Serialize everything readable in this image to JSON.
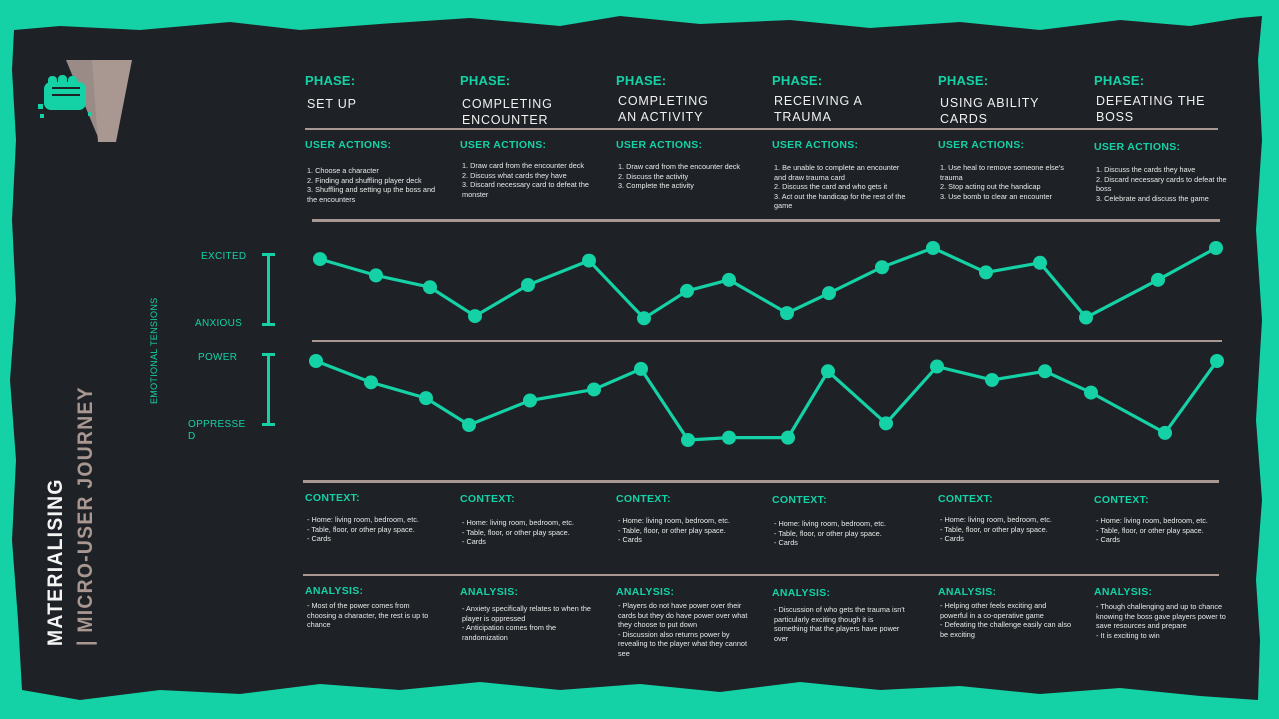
{
  "title": {
    "line1": "MATERIALISING",
    "line2": "| MICRO-USER JOURNEY"
  },
  "y_axis_title": "EMOTIONAL TENSIONS",
  "scales": [
    {
      "top": "EXCITED",
      "bottom": "ANXIOUS"
    },
    {
      "top": "POWER",
      "bottom": "OPPRESSED"
    }
  ],
  "section_labels": {
    "phase": "PHASE:",
    "actions": "USER ACTIONS:",
    "context": "CONTEXT:",
    "analysis": "ANALYSIS:"
  },
  "phases": [
    {
      "name": "SET UP",
      "actions": [
        "1. Choose a character",
        "2. Finding and shuffling player deck",
        "3. Shuffling and setting up the boss and the encounters"
      ],
      "context": [
        "- Home: living room, bedroom, etc.",
        "- Table, floor, or other play space.",
        "- Cards"
      ],
      "analysis": [
        "- Most of the power comes from choosing a character, the rest is up to chance"
      ]
    },
    {
      "name": "COMPLETING ENCOUNTER",
      "actions": [
        "1. Draw card from the encounter deck",
        "2. Discuss what cards they have",
        "3. Discard necessary card to defeat the monster"
      ],
      "context": [
        "- Home: living room, bedroom, etc.",
        "- Table, floor, or other play space.",
        "- Cards"
      ],
      "analysis": [
        "- Anxiety specifically relates to when the player is oppressed",
        "- Anticipation comes from the randomization"
      ]
    },
    {
      "name": "COMPLETING AN ACTIVITY",
      "actions": [
        "1. Draw card from the encounter deck",
        "2. Discuss the activity",
        "3. Complete the activity"
      ],
      "context": [
        "- Home: living room, bedroom, etc.",
        "- Table, floor, or other play space.",
        "- Cards"
      ],
      "analysis": [
        "- Players do not have power over their cards but they do have power over what they choose to put down",
        "- Discussion also returns power by revealing to the player what they cannot see"
      ]
    },
    {
      "name": "RECEIVING A TRAUMA",
      "actions": [
        "1. Be unable to complete an encounter and draw trauma card",
        "2. Discuss the card and who gets it",
        "3. Act out the handicap for the rest of the game"
      ],
      "context": [
        "- Home: living room, bedroom, etc.",
        "- Table, floor, or other play space.",
        "- Cards"
      ],
      "analysis": [
        "- Discussion of who gets the trauma isn't particularly exciting though it is something that the players have power over"
      ]
    },
    {
      "name": "USING ABILITY CARDS",
      "actions": [
        "1. Use heal to remove someone else's trauma",
        "2. Stop acting out the handicap",
        "3. Use bomb to clear an encounter"
      ],
      "context": [
        "- Home: living room, bedroom, etc.",
        "- Table, floor, or other play space.",
        "- Cards"
      ],
      "analysis": [
        "- Helping other feels exciting and powerful in a co-operative game",
        "- Defeating the challenge easily can also be exciting"
      ]
    },
    {
      "name": "DEFEATING THE BOSS",
      "actions": [
        "1. Discuss the cards they have",
        "2. Discard necessary cards to defeat the boss",
        "3. Celebrate and discuss the game"
      ],
      "context": [
        "- Home: living room, bedroom, etc.",
        "- Table, floor, or other play space.",
        "- Cards"
      ],
      "analysis": [
        "- Though challenging and up to chance knowing the boss gave players power to save resources and prepare",
        "- It is exciting to win"
      ]
    }
  ],
  "chart_data": [
    {
      "type": "line",
      "series": [
        {
          "name": "",
          "values": [
            0.85,
            0.63,
            0.47,
            0.08,
            0.5,
            0.83,
            0.05,
            0.42,
            0.57,
            0.12,
            0.39,
            0.74,
            1.0,
            0.67,
            0.8,
            0.06,
            0.57,
            1.0
          ]
        }
      ],
      "ylim": [
        0,
        1
      ],
      "color": "#15d1a6"
    },
    {
      "type": "line",
      "series": [
        {
          "name": "",
          "values": [
            1.0,
            0.73,
            0.53,
            0.19,
            0.5,
            0.64,
            0.9,
            0.0,
            0.03,
            0.03,
            0.87,
            0.21,
            0.93,
            0.76,
            0.87,
            0.6,
            0.09,
            1.0
          ]
        }
      ],
      "ylim": [
        0,
        1
      ],
      "color": "#15d1a6"
    }
  ],
  "colors": {
    "accent": "#15d1a6",
    "background": "#1e2226",
    "divider": "#a99791",
    "text": "#f1f1f1"
  },
  "logo": {
    "icon": "fist-icon",
    "letter": "V"
  }
}
